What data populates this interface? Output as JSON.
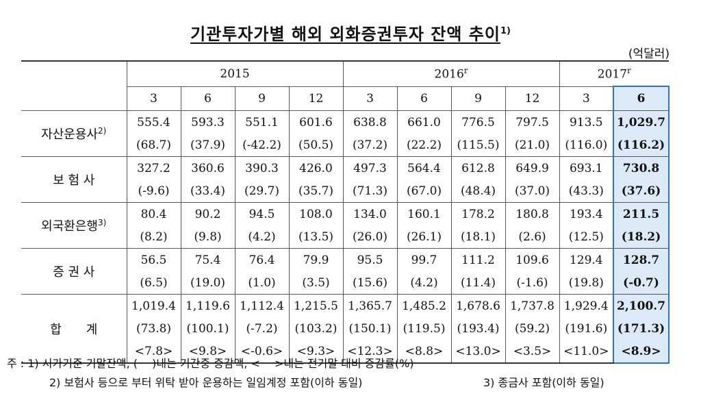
{
  "title": "기관투자가별 해외 외화증권투자 잔액 추이",
  "title_sup": "1)",
  "unit": "(억달러)",
  "years": [
    {
      "label": "2015",
      "sup": "",
      "span": 4
    },
    {
      "label": "2016",
      "sup": "r",
      "span": 4
    },
    {
      "label": "2017",
      "sup": "r",
      "span": 2
    }
  ],
  "months": [
    "3",
    "6",
    "9",
    "12",
    "3",
    "6",
    "9",
    "12",
    "3",
    "6"
  ],
  "categories": [
    {
      "name": "자산운용사",
      "sup": "2)",
      "rows": [
        [
          "555.4",
          "593.3",
          "551.1",
          "601.6",
          "638.8",
          "661.0",
          "776.5",
          "797.5",
          "913.5",
          "1,029.7"
        ],
        [
          "(68.7)",
          "(37.9)",
          "(-42.2)",
          "(50.5)",
          "(37.2)",
          "(22.2)",
          "(115.5)",
          "(21.0)",
          "(116.0)",
          "(116.2)"
        ]
      ]
    },
    {
      "name": "보 험 사",
      "sup": "",
      "rows": [
        [
          "327.2",
          "360.6",
          "390.3",
          "426.0",
          "497.3",
          "564.4",
          "612.8",
          "649.9",
          "693.1",
          "730.8"
        ],
        [
          "(-9.6)",
          "(33.4)",
          "(29.7)",
          "(35.7)",
          "(71.3)",
          "(67.0)",
          "(48.4)",
          "(37.0)",
          "(43.3)",
          "(37.6)"
        ]
      ]
    },
    {
      "name": "외국환은행",
      "sup": "3)",
      "rows": [
        [
          "80.4",
          "90.2",
          "94.5",
          "108.0",
          "134.0",
          "160.1",
          "178.2",
          "180.8",
          "193.4",
          "211.5"
        ],
        [
          "(8.2)",
          "(9.8)",
          "(4.2)",
          "(13.5)",
          "(26.0)",
          "(26.1)",
          "(18.1)",
          "(2.6)",
          "(12.5)",
          "(18.2)"
        ]
      ]
    },
    {
      "name": "증 권 사",
      "sup": "",
      "rows": [
        [
          "56.5",
          "75.4",
          "76.4",
          "79.9",
          "95.5",
          "99.7",
          "111.2",
          "109.6",
          "129.4",
          "128.7"
        ],
        [
          "(6.5)",
          "(19.0)",
          "(1.0)",
          "(3.5)",
          "(15.6)",
          "(4.2)",
          "(11.4)",
          "(-1.6)",
          "(19.8)",
          "(-0.7)"
        ]
      ]
    },
    {
      "name": "합　　계",
      "sup": "",
      "rows": [
        [
          "1,019.4",
          "1,119.6",
          "1,112.4",
          "1,215.5",
          "1,365.7",
          "1,485.2",
          "1,678.6",
          "1,737.8",
          "1,929.4",
          "2,100.7"
        ],
        [
          "(73.8)",
          "(100.1)",
          "(-7.2)",
          "(103.2)",
          "(150.1)",
          "(119.5)",
          "(193.4)",
          "(59.2)",
          "(191.6)",
          "(171.3)"
        ],
        [
          "<7.8>",
          "<9.8>",
          "<-0.6>",
          "<9.3>",
          "<12.3>",
          "<8.8>",
          "<13.0>",
          "<3.5>",
          "<11.0>",
          "<8.9>"
        ]
      ]
    }
  ],
  "notes": [
    "주 : 1) 시가기준 기말잔액, (　 )내는 기간중 증감액, < 　>내는 전기말 대비 증감률(%)",
    "2) 보험사 등으로 부터 위탁 받아 운용하는 일임계정 포함(이하 동일)",
    "3) 종금사 포함(이하 동일)"
  ],
  "colors": {
    "highlight_bg": "#dbeaf6",
    "highlight_border": "#2e75b6"
  }
}
